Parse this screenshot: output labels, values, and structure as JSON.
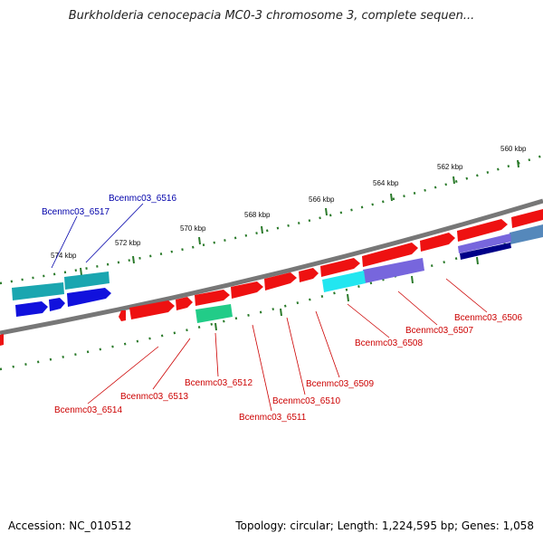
{
  "title": "Burkholderia cenocepacia MC0-3 chromosome 3, complete sequen...",
  "footer": {
    "accession": "Accession: NC_010512",
    "summary": "Topology: circular; Length: 1,224,595 bp; Genes: 1,058"
  },
  "scale_labels": [
    "560 kbp",
    "562 kbp",
    "564 kbp",
    "566 kbp",
    "568 kbp",
    "570 kbp",
    "572 kbp",
    "574 kbp"
  ],
  "colors": {
    "forward_gene": "#ee1111",
    "reverse_blue": "#1111dd",
    "teal": "#1aa6b0",
    "cyan": "#22e6f0",
    "violet": "#7766dd",
    "navy": "#000088",
    "steel": "#5588bb",
    "green": "#22cc88",
    "label_red": "#cc0000",
    "label_blue": "#0000aa",
    "backbone": "#777777",
    "tick_green": "#2a7a2a"
  },
  "gene_labels": [
    {
      "name": "Bcenmc03_6506",
      "color": "red"
    },
    {
      "name": "Bcenmc03_6507",
      "color": "red"
    },
    {
      "name": "Bcenmc03_6508",
      "color": "red"
    },
    {
      "name": "Bcenmc03_6509",
      "color": "red"
    },
    {
      "name": "Bcenmc03_6510",
      "color": "red"
    },
    {
      "name": "Bcenmc03_6511",
      "color": "red"
    },
    {
      "name": "Bcenmc03_6512",
      "color": "red"
    },
    {
      "name": "Bcenmc03_6513",
      "color": "red"
    },
    {
      "name": "Bcenmc03_6514",
      "color": "red"
    },
    {
      "name": "Bcenmc03_6516",
      "color": "blue"
    },
    {
      "name": "Bcenmc03_6517",
      "color": "blue"
    }
  ]
}
